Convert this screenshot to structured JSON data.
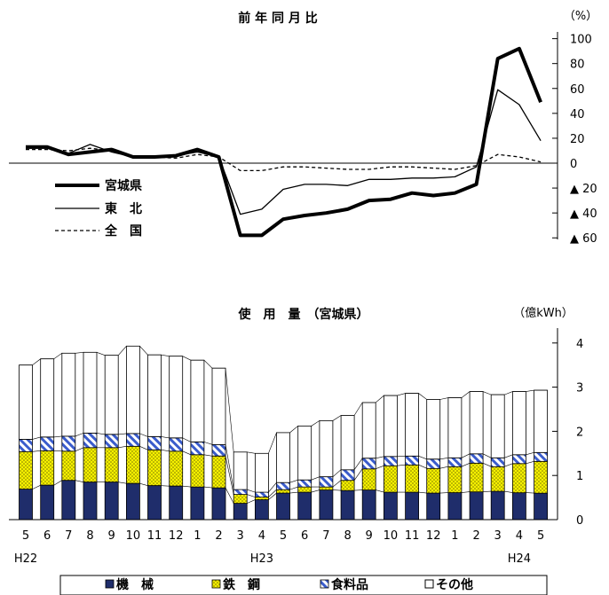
{
  "chart_data": [
    {
      "type": "line",
      "title": "前 年 同 月 比",
      "unit": "（%）",
      "x": [
        "5",
        "6",
        "7",
        "8",
        "9",
        "10",
        "11",
        "12",
        "1",
        "2",
        "3",
        "4",
        "5",
        "6",
        "7",
        "8",
        "9",
        "10",
        "11",
        "12",
        "1",
        "2",
        "3",
        "4",
        "5"
      ],
      "ylim": [
        -60,
        100
      ],
      "ytick_values": [
        100,
        80,
        60,
        40,
        20,
        0,
        -20,
        -40,
        -60
      ],
      "ytick_labels": [
        "100",
        "80",
        "60",
        "40",
        "20",
        "0",
        "▲ 20",
        "▲ 40",
        "▲ 60"
      ],
      "series": [
        {
          "name": "宮城県",
          "style": "thick",
          "values": [
            13,
            13,
            7,
            9,
            11,
            5,
            5,
            6,
            11,
            5,
            -58,
            -58,
            -45,
            -42,
            -40,
            -37,
            -30,
            -29,
            -24,
            -26,
            -24,
            -17,
            84,
            92,
            49
          ]
        },
        {
          "name": "東　北",
          "style": "thin",
          "values": [
            12,
            12,
            8,
            15,
            9,
            5,
            5,
            6,
            9,
            5,
            -41,
            -37,
            -21,
            -17,
            -17,
            -18,
            -13,
            -13,
            -12,
            -12,
            -11,
            -3,
            59,
            47,
            18
          ]
        },
        {
          "name": "全　国",
          "style": "dashed",
          "values": [
            11,
            11,
            10,
            12,
            10,
            5,
            5,
            4,
            7,
            5,
            -6,
            -6,
            -3,
            -3,
            -4,
            -5,
            -5,
            -3,
            -3,
            -4,
            -5,
            -2,
            7,
            5,
            1
          ]
        }
      ]
    },
    {
      "type": "bar",
      "stacked": true,
      "title": "使　用　量　（宮城県）",
      "unit": "（億kWh）",
      "categories": [
        "5",
        "6",
        "7",
        "8",
        "9",
        "10",
        "11",
        "12",
        "1",
        "2",
        "3",
        "4",
        "5",
        "6",
        "7",
        "8",
        "9",
        "10",
        "11",
        "12",
        "1",
        "2",
        "3",
        "4",
        "5"
      ],
      "year_labels": [
        {
          "at_index": 0,
          "label": "H22"
        },
        {
          "at_index": 11,
          "label": "H23"
        },
        {
          "at_index": 23,
          "label": "H24"
        }
      ],
      "ylim": [
        0,
        4.4
      ],
      "ytick_labels": [
        "4",
        "3",
        "2",
        "1",
        "0"
      ],
      "series": [
        {
          "name": "機　械",
          "color": "#1f2d6b",
          "values": [
            0.69,
            0.78,
            0.89,
            0.85,
            0.85,
            0.82,
            0.77,
            0.76,
            0.74,
            0.72,
            0.37,
            0.45,
            0.6,
            0.62,
            0.67,
            0.66,
            0.67,
            0.62,
            0.62,
            0.6,
            0.61,
            0.63,
            0.64,
            0.61,
            0.6
          ]
        },
        {
          "name": "鉄　鋼",
          "color": "#f5f000",
          "values": [
            0.85,
            0.78,
            0.66,
            0.78,
            0.78,
            0.84,
            0.81,
            0.79,
            0.73,
            0.72,
            0.2,
            0.06,
            0.08,
            0.12,
            0.07,
            0.23,
            0.48,
            0.6,
            0.62,
            0.56,
            0.59,
            0.65,
            0.56,
            0.66,
            0.72
          ]
        },
        {
          "name": "食料品",
          "color": "#3a5ccc",
          "values": [
            0.28,
            0.31,
            0.34,
            0.33,
            0.3,
            0.29,
            0.3,
            0.3,
            0.29,
            0.26,
            0.11,
            0.11,
            0.16,
            0.16,
            0.23,
            0.24,
            0.24,
            0.21,
            0.2,
            0.21,
            0.2,
            0.21,
            0.2,
            0.2,
            0.2
          ]
        },
        {
          "name": "その他",
          "color": "#ffffff",
          "values": [
            1.68,
            1.77,
            1.88,
            1.83,
            1.79,
            1.98,
            1.85,
            1.85,
            1.85,
            1.73,
            0.85,
            0.88,
            1.13,
            1.22,
            1.27,
            1.23,
            1.26,
            1.38,
            1.42,
            1.35,
            1.36,
            1.41,
            1.43,
            1.43,
            1.41
          ]
        }
      ],
      "legend": [
        "■機　械",
        "■鉄　鋼",
        "■食料品",
        "□その他"
      ],
      "legend_position": "bottom"
    }
  ]
}
